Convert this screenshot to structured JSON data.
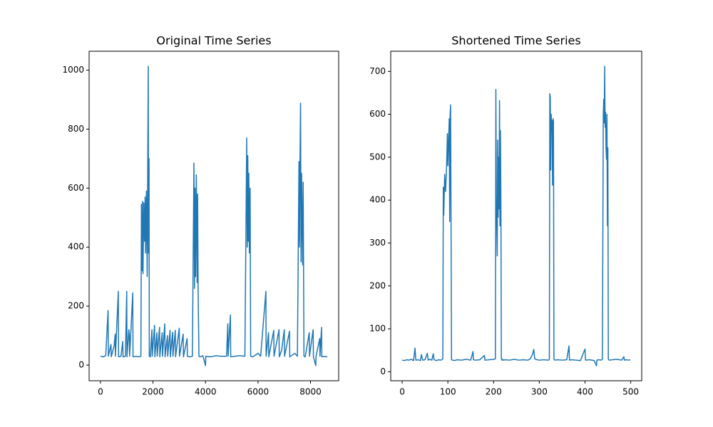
{
  "chart_data": [
    {
      "type": "line",
      "title": "Original Time Series",
      "color": "#1f77b4",
      "x": [
        0,
        100,
        200,
        290,
        300,
        400,
        410,
        520,
        560,
        570,
        680,
        690,
        780,
        850,
        860,
        950,
        1000,
        1010,
        1080,
        1100,
        1110,
        1230,
        1240,
        1350,
        1450,
        1540,
        1560,
        1580,
        1600,
        1620,
        1650,
        1680,
        1700,
        1720,
        1750,
        1780,
        1800,
        1820,
        1830,
        1850,
        1860,
        1900,
        1960,
        1970,
        2060,
        2070,
        2150,
        2160,
        2250,
        2260,
        2350,
        2360,
        2450,
        2460,
        2550,
        2560,
        2650,
        2660,
        2750,
        2760,
        2850,
        2860,
        3000,
        3010,
        3150,
        3160,
        3300,
        3310,
        3400,
        3500,
        3560,
        3580,
        3600,
        3620,
        3650,
        3680,
        3700,
        3720,
        3750,
        3800,
        3900,
        4000,
        4010,
        4200,
        4400,
        4600,
        4800,
        4850,
        4860,
        4950,
        4960,
        5100,
        5300,
        5500,
        5570,
        5590,
        5610,
        5630,
        5650,
        5670,
        5700,
        5720,
        5800,
        6000,
        6100,
        6300,
        6310,
        6400,
        6410,
        6600,
        6610,
        6800,
        6810,
        6900,
        7000,
        7010,
        7200,
        7210,
        7400,
        7500,
        7560,
        7580,
        7600,
        7620,
        7640,
        7660,
        7700,
        7720,
        7750,
        7800,
        7950,
        7960,
        8100,
        8110,
        8200,
        8210,
        8350,
        8360,
        8420,
        8430,
        8550,
        8640
      ],
      "values": [
        30,
        28,
        32,
        185,
        30,
        70,
        28,
        65,
        105,
        30,
        250,
        28,
        30,
        80,
        28,
        30,
        250,
        28,
        120,
        100,
        30,
        245,
        28,
        30,
        28,
        30,
        545,
        320,
        555,
        310,
        550,
        420,
        570,
        380,
        590,
        300,
        660,
        1013,
        380,
        700,
        30,
        28,
        120,
        30,
        135,
        28,
        110,
        30,
        128,
        28,
        110,
        30,
        140,
        28,
        100,
        30,
        118,
        28,
        112,
        30,
        118,
        28,
        125,
        30,
        105,
        28,
        90,
        30,
        28,
        30,
        685,
        260,
        600,
        300,
        645,
        280,
        580,
        250,
        30,
        28,
        32,
        -2,
        30,
        28,
        32,
        30,
        30,
        140,
        30,
        170,
        28,
        30,
        32,
        30,
        770,
        400,
        710,
        420,
        650,
        380,
        600,
        30,
        28,
        40,
        30,
        250,
        30,
        110,
        28,
        118,
        30,
        120,
        28,
        50,
        120,
        30,
        115,
        28,
        40,
        30,
        690,
        400,
        700,
        888,
        350,
        650,
        340,
        620,
        30,
        28,
        110,
        30,
        120,
        28,
        -2,
        30,
        90,
        30,
        128,
        28,
        30,
        28
      ],
      "xlim": [
        -432,
        9072
      ],
      "xticks": [
        0,
        2000,
        4000,
        6000,
        8000
      ],
      "ylim": [
        -53,
        1064
      ],
      "yticks": [
        0,
        200,
        400,
        600,
        800,
        1000
      ]
    },
    {
      "type": "line",
      "title": "Shortened Time Series",
      "color": "#1f77b4",
      "x": [
        0,
        5,
        10,
        15,
        20,
        25,
        28,
        30,
        35,
        40,
        42,
        45,
        50,
        55,
        57,
        60,
        65,
        68,
        70,
        75,
        80,
        85,
        89,
        90,
        91,
        93,
        95,
        97,
        99,
        100,
        101,
        103,
        104,
        105,
        106,
        107,
        108,
        110,
        115,
        120,
        130,
        140,
        150,
        155,
        156,
        160,
        170,
        180,
        181,
        190,
        200,
        204,
        205,
        206,
        208,
        209,
        210,
        211,
        212,
        213,
        214,
        215,
        216,
        217,
        218,
        219,
        220,
        221,
        225,
        235,
        245,
        255,
        265,
        275,
        280,
        285,
        288,
        290,
        295,
        300,
        310,
        320,
        322,
        323,
        324,
        325,
        326,
        327,
        328,
        329,
        330,
        331,
        332,
        333,
        334,
        340,
        350,
        360,
        365,
        366,
        370,
        380,
        390,
        400,
        401,
        410,
        420,
        425,
        426,
        430,
        435,
        438,
        440,
        441,
        442,
        443,
        444,
        445,
        446,
        447,
        448,
        449,
        450,
        451,
        452,
        453,
        460,
        470,
        480,
        485,
        486,
        490,
        495,
        499
      ],
      "values": [
        27,
        26,
        28,
        27,
        29,
        26,
        55,
        27,
        28,
        26,
        40,
        27,
        28,
        43,
        27,
        29,
        27,
        42,
        28,
        26,
        28,
        27,
        30,
        430,
        365,
        460,
        420,
        470,
        555,
        480,
        520,
        590,
        350,
        600,
        622,
        340,
        28,
        27,
        26,
        28,
        27,
        29,
        27,
        47,
        28,
        27,
        28,
        38,
        27,
        28,
        29,
        30,
        658,
        400,
        270,
        540,
        360,
        500,
        380,
        632,
        340,
        562,
        400,
        30,
        28,
        27,
        29,
        27,
        28,
        27,
        29,
        27,
        28,
        27,
        30,
        40,
        52,
        30,
        28,
        27,
        28,
        27,
        29,
        648,
        640,
        470,
        600,
        560,
        585,
        435,
        590,
        585,
        30,
        28,
        27,
        28,
        27,
        28,
        60,
        27,
        28,
        27,
        26,
        53,
        27,
        28,
        26,
        14,
        27,
        28,
        27,
        29,
        600,
        635,
        580,
        712,
        570,
        605,
        520,
        495,
        600,
        340,
        522,
        30,
        28,
        27,
        28,
        29,
        27,
        35,
        27,
        28,
        27,
        28
      ],
      "xlim": [
        -25,
        524
      ],
      "xticks": [
        0,
        100,
        200,
        300,
        400,
        500
      ],
      "ylim": [
        -21,
        747
      ],
      "yticks": [
        0,
        100,
        200,
        300,
        400,
        500,
        600,
        700
      ]
    }
  ]
}
